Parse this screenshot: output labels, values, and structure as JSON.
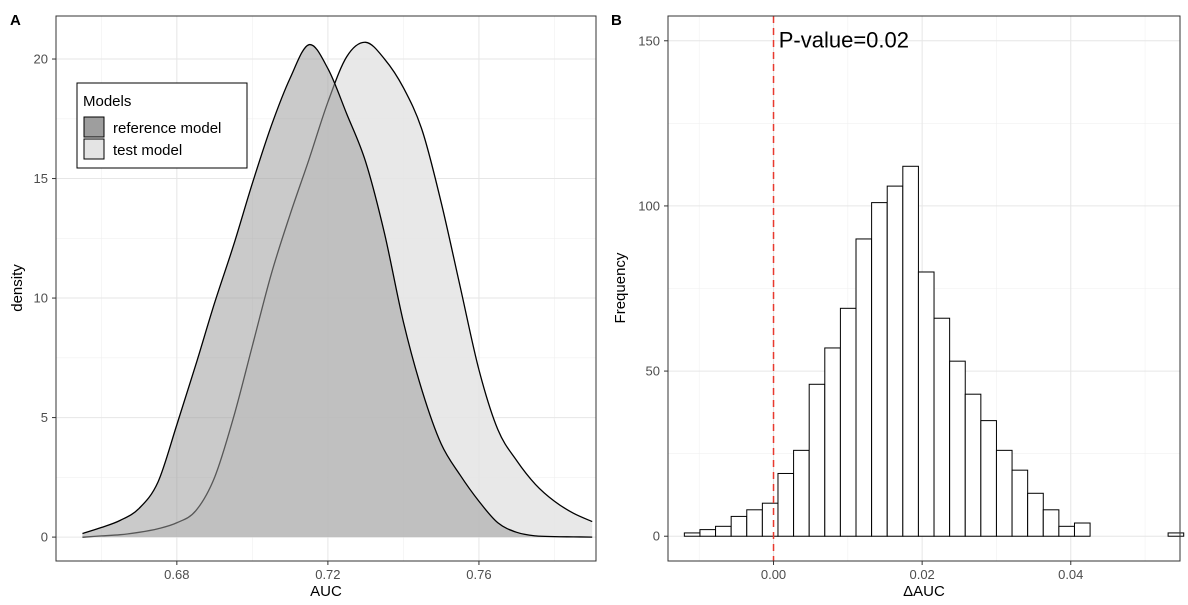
{
  "panels": {
    "a": {
      "letter": "A"
    },
    "b": {
      "letter": "B"
    }
  },
  "chart_data": [
    {
      "type": "area",
      "subtype": "density",
      "xlabel": "AUC",
      "ylabel": "density",
      "xlim": [
        0.648,
        0.791
      ],
      "ylim": [
        -1.0,
        21.8
      ],
      "xticks": [
        0.68,
        0.72,
        0.76
      ],
      "xtick_labels": [
        "0.68",
        "0.72",
        "0.76"
      ],
      "yticks": [
        0,
        5,
        10,
        15,
        20
      ],
      "ytick_labels": [
        "0",
        "5",
        "10",
        "15",
        "20"
      ],
      "grid": true,
      "legend": {
        "title": "Models",
        "placement": "top-left",
        "entries": [
          {
            "label": "reference model",
            "color": "#9e9e9e"
          },
          {
            "label": "test model",
            "color": "#e4e4e4"
          }
        ]
      },
      "series": [
        {
          "name": "test model",
          "fill": "#e4e4e4",
          "fill_opacity": 0.85,
          "stroke": "#000000",
          "x": [
            0.655,
            0.66,
            0.665,
            0.67,
            0.675,
            0.68,
            0.685,
            0.69,
            0.695,
            0.7,
            0.705,
            0.71,
            0.715,
            0.72,
            0.725,
            0.73,
            0.735,
            0.74,
            0.745,
            0.75,
            0.755,
            0.76,
            0.765,
            0.77,
            0.775,
            0.78,
            0.785,
            0.79
          ],
          "y": [
            0.0,
            0.05,
            0.1,
            0.2,
            0.35,
            0.6,
            1.1,
            2.5,
            5.0,
            8.0,
            11.0,
            13.5,
            15.8,
            18.2,
            20.1,
            20.7,
            20.0,
            18.8,
            17.0,
            14.0,
            10.5,
            7.0,
            4.5,
            3.2,
            2.2,
            1.5,
            1.0,
            0.65
          ]
        },
        {
          "name": "reference model",
          "fill": "#9e9e9e",
          "fill_opacity": 0.55,
          "stroke": "#000000",
          "x": [
            0.655,
            0.66,
            0.665,
            0.67,
            0.675,
            0.68,
            0.685,
            0.69,
            0.695,
            0.7,
            0.705,
            0.71,
            0.715,
            0.72,
            0.725,
            0.73,
            0.735,
            0.74,
            0.745,
            0.75,
            0.755,
            0.76,
            0.765,
            0.77,
            0.775,
            0.78,
            0.785,
            0.79
          ],
          "y": [
            0.15,
            0.4,
            0.7,
            1.2,
            2.3,
            4.7,
            7.2,
            9.8,
            12.2,
            14.8,
            17.2,
            19.2,
            20.6,
            19.6,
            17.7,
            15.7,
            12.7,
            9.0,
            6.1,
            3.9,
            2.6,
            1.5,
            0.6,
            0.2,
            0.05,
            0.02,
            0.01,
            0.0
          ]
        }
      ]
    },
    {
      "type": "bar",
      "subtype": "histogram",
      "xlabel": "ΔAUC",
      "ylabel": "Frequency",
      "xlim": [
        -0.0142,
        0.0547
      ],
      "ylim": [
        -7.5,
        157.5
      ],
      "xticks": [
        0.0,
        0.02,
        0.04
      ],
      "xtick_labels": [
        "0.00",
        "0.02",
        "0.04"
      ],
      "yticks": [
        0,
        50,
        100,
        150
      ],
      "ytick_labels": [
        "0",
        "50",
        "100",
        "150"
      ],
      "grid": true,
      "bin_width": 0.0021,
      "bin_start": -0.012,
      "counts": [
        1,
        2,
        3,
        6,
        8,
        10,
        19,
        26,
        46,
        57,
        69,
        90,
        101,
        106,
        112,
        80,
        66,
        53,
        43,
        35,
        26,
        20,
        13,
        8,
        3,
        4,
        0,
        0,
        0,
        0,
        0,
        1
      ],
      "fill": "#ffffff",
      "stroke": "#000000",
      "reference_line": {
        "x": 0.0,
        "color": "#e8392e",
        "style": "dashed"
      },
      "annotation": {
        "text": "P-value=0.02",
        "x": 0.0007,
        "y": 148
      }
    }
  ]
}
